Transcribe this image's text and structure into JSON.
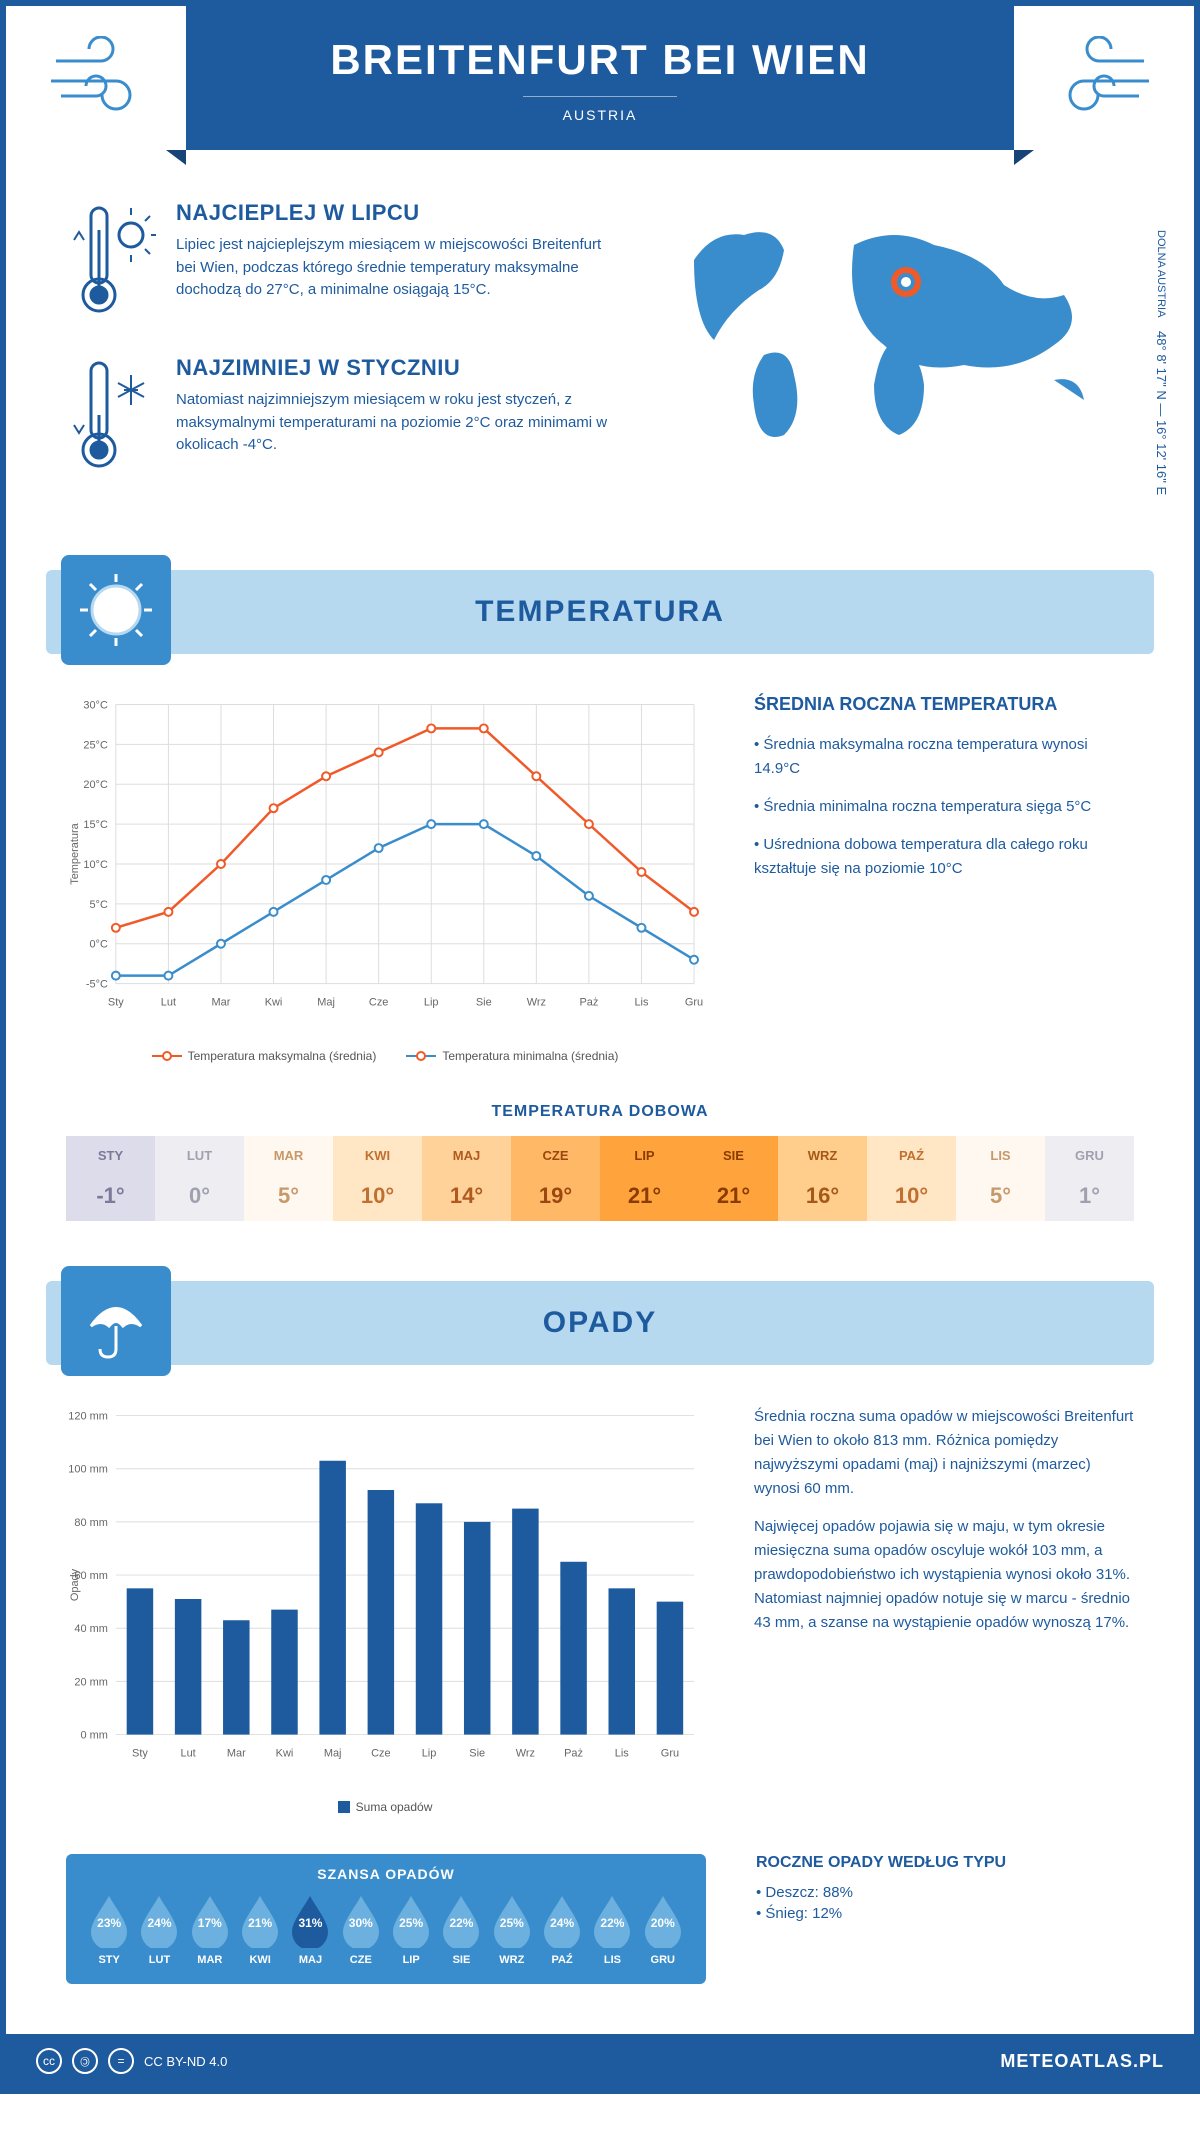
{
  "header": {
    "title": "BREITENFURT BEI WIEN",
    "country": "AUSTRIA"
  },
  "intro": {
    "hot": {
      "title": "NAJCIEPLEJ W LIPCU",
      "text": "Lipiec jest najcieplejszym miesiącem w miejscowości Breitenfurt bei Wien, podczas którego średnie temperatury maksymalne dochodzą do 27°C, a minimalne osiągają 15°C."
    },
    "cold": {
      "title": "NAJZIMNIEJ W STYCZNIU",
      "text": "Natomiast najzimniejszym miesiącem w roku jest styczeń, z maksymalnymi temperaturami na poziomie 2°C oraz minimami w okolicach -4°C."
    },
    "coords": "48° 8' 17\" N — 16° 12' 16\" E",
    "region": "DOLNA AUSTRIA"
  },
  "temp_section": {
    "title": "TEMPERATURA",
    "chart": {
      "months": [
        "Sty",
        "Lut",
        "Mar",
        "Kwi",
        "Maj",
        "Cze",
        "Lip",
        "Sie",
        "Wrz",
        "Paż",
        "Lis",
        "Gru"
      ],
      "max": [
        2,
        4,
        10,
        17,
        21,
        24,
        27,
        27,
        21,
        15,
        9,
        4
      ],
      "min": [
        -4,
        -4,
        0,
        4,
        8,
        12,
        15,
        15,
        11,
        6,
        2,
        -2
      ],
      "ylim": [
        -5,
        30
      ],
      "ytick_step": 5,
      "color_max": "#f05a28",
      "color_min": "#3a8dcc",
      "ylabel": "Temperatura",
      "legend_max": "Temperatura maksymalna (średnia)",
      "legend_min": "Temperatura minimalna (średnia)"
    },
    "info": {
      "title": "ŚREDNIA ROCZNA TEMPERATURA",
      "b1": "• Średnia maksymalna roczna temperatura wynosi 14.9°C",
      "b2": "• Średnia minimalna roczna temperatura sięga 5°C",
      "b3": "• Uśredniona dobowa temperatura dla całego roku kształtuje się na poziomie 10°C"
    },
    "daily": {
      "title": "TEMPERATURA DOBOWA",
      "months": [
        "STY",
        "LUT",
        "MAR",
        "KWI",
        "MAJ",
        "CZE",
        "LIP",
        "SIE",
        "WRZ",
        "PAŹ",
        "LIS",
        "GRU"
      ],
      "values": [
        "-1°",
        "0°",
        "5°",
        "10°",
        "14°",
        "19°",
        "21°",
        "21°",
        "16°",
        "10°",
        "5°",
        "1°"
      ],
      "bg_colors": [
        "#dcdcea",
        "#eeeef2",
        "#fff8f0",
        "#ffe6c5",
        "#ffd29a",
        "#ffb866",
        "#ffa43d",
        "#ffa43d",
        "#ffcd8c",
        "#ffe6c5",
        "#fff8f0",
        "#eeeef2"
      ],
      "fg_colors": [
        "#7a7a9a",
        "#a0a0b0",
        "#c89868",
        "#c07030",
        "#b05a20",
        "#9a4810",
        "#8a3c00",
        "#8a3c00",
        "#a65818",
        "#c07030",
        "#c89868",
        "#a0a0b0"
      ]
    }
  },
  "precip_section": {
    "title": "OPADY",
    "chart": {
      "months": [
        "Sty",
        "Lut",
        "Mar",
        "Kwi",
        "Maj",
        "Cze",
        "Lip",
        "Sie",
        "Wrz",
        "Paż",
        "Lis",
        "Gru"
      ],
      "values": [
        55,
        51,
        43,
        47,
        103,
        92,
        87,
        80,
        85,
        65,
        55,
        50
      ],
      "ylim": [
        0,
        120
      ],
      "ytick_step": 20,
      "bar_color": "#1e5a9e",
      "ylabel": "Opady",
      "legend": "Suma opadów"
    },
    "text1": "Średnia roczna suma opadów w miejscowości Breitenfurt bei Wien to około 813 mm. Różnica pomiędzy najwyższymi opadami (maj) i najniższymi (marzec) wynosi 60 mm.",
    "text2": "Najwięcej opadów pojawia się w maju, w tym okresie miesięczna suma opadów oscyluje wokół 103 mm, a prawdopodobieństwo ich wystąpienia wynosi około 31%. Natomiast najmniej opadów notuje się w marcu - średnio 43 mm, a szanse na wystąpienie opadów wynoszą 17%.",
    "chance": {
      "title": "SZANSA OPADÓW",
      "months": [
        "STY",
        "LUT",
        "MAR",
        "KWI",
        "MAJ",
        "CZE",
        "LIP",
        "SIE",
        "WRZ",
        "PAŹ",
        "LIS",
        "GRU"
      ],
      "pct": [
        "23%",
        "24%",
        "17%",
        "21%",
        "31%",
        "30%",
        "25%",
        "22%",
        "25%",
        "24%",
        "22%",
        "20%"
      ],
      "raw": [
        23,
        24,
        17,
        21,
        31,
        30,
        25,
        22,
        25,
        24,
        22,
        20
      ]
    },
    "bytype": {
      "title": "ROCZNE OPADY WEDŁUG TYPU",
      "l1": "• Deszcz: 88%",
      "l2": "• Śnieg: 12%"
    }
  },
  "footer": {
    "license": "CC BY-ND 4.0",
    "brand": "METEOATLAS.PL"
  }
}
